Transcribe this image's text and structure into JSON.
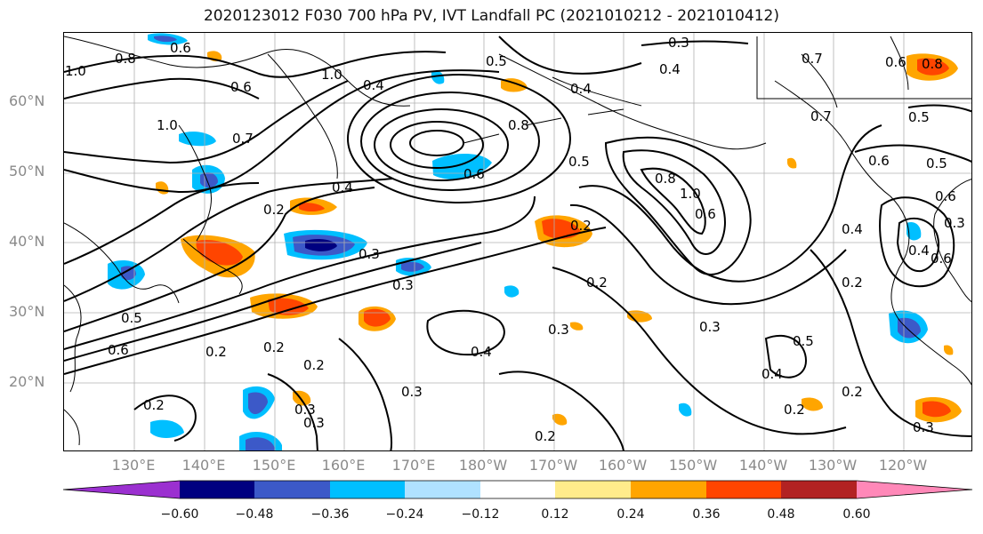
{
  "title": "2020123012 F030 700 hPa PV, IVT Landfall PC (2021010212 - 2021010412)",
  "map": {
    "lat_labels": [
      "60°N",
      "50°N",
      "40°N",
      "30°N",
      "20°N"
    ],
    "lon_labels": [
      "130°E",
      "140°E",
      "150°E",
      "160°E",
      "170°E",
      "180°W",
      "170°W",
      "160°W",
      "150°W",
      "140°W",
      "130°W",
      "120°W"
    ],
    "contour_labels": [
      "0.6",
      "0.8",
      "1.0",
      "1.0",
      "0.6",
      "0.7",
      "1.0",
      "0.4",
      "0.2",
      "0.4",
      "0.3",
      "0.5",
      "0.6",
      "0.2",
      "0.3",
      "0.8",
      "0.6",
      "1.0",
      "0.4",
      "0.5",
      "0.8",
      "0.3",
      "0.4",
      "0.8",
      "0.6",
      "0.5",
      "0.7",
      "0.5",
      "0.6",
      "0.5",
      "0.6",
      "0.4",
      "0.6",
      "0.4",
      "0.2",
      "0.2",
      "0.3",
      "0.3",
      "0.4",
      "0.3",
      "0.2",
      "0.3",
      "0.2",
      "0.2",
      "0.2",
      "0.3",
      "0.4",
      "0.5",
      "0.2",
      "0.3",
      "0.2",
      "0.2",
      "0.3",
      "0.6",
      "0.7"
    ]
  },
  "colorbar": {
    "ticks": [
      "−0.60",
      "−0.48",
      "−0.36",
      "−0.24",
      "−0.12",
      "0.12",
      "0.24",
      "0.36",
      "0.48",
      "0.60"
    ],
    "colors": [
      "#9b30d0",
      "#000080",
      "#3c59c8",
      "#00bfff",
      "#b0e2ff",
      "#ffffff",
      "#ffec8b",
      "#ffa500",
      "#ff4500",
      "#b22222",
      "#ff88b8"
    ]
  }
}
